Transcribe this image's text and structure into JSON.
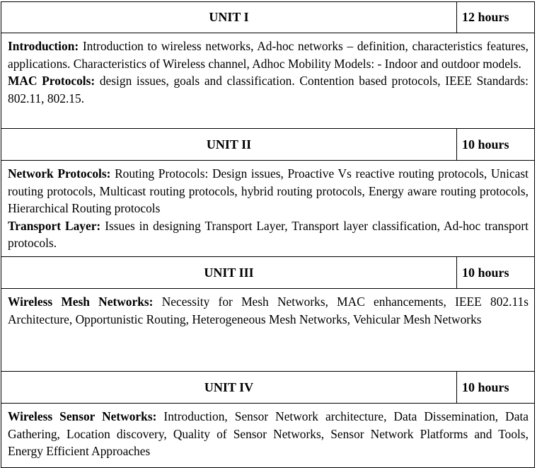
{
  "units": [
    {
      "title": "UNIT I",
      "hours": "12 hours",
      "paragraphs": [
        {
          "label": "Introduction:",
          "text": " Introduction to wireless networks, Ad-hoc networks – definition, characteristics features, applications. Characteristics of Wireless channel, Adhoc Mobility Models: - Indoor and outdoor models."
        },
        {
          "label": "MAC Protocols:",
          "text": " design issues, goals and classification. Contention based protocols, IEEE Standards: 802.11, 802.15."
        }
      ]
    },
    {
      "title": "UNIT II",
      "hours": "10 hours",
      "paragraphs": [
        {
          "label": "Network Protocols:",
          "text": " Routing Protocols: Design issues, Proactive Vs reactive routing protocols, Unicast routing protocols, Multicast routing protocols, hybrid routing protocols, Energy aware routing protocols, Hierarchical Routing protocols"
        },
        {
          "label": "Transport Layer:",
          "text": " Issues in designing Transport Layer, Transport layer classification, Ad-hoc transport protocols."
        }
      ]
    },
    {
      "title": "UNIT III",
      "hours": "10 hours",
      "paragraphs": [
        {
          "label": "Wireless Mesh Networks:",
          "text": " Necessity for Mesh Networks, MAC enhancements, IEEE 802.11s Architecture, Opportunistic Routing, Heterogeneous Mesh Networks, Vehicular Mesh Networks"
        }
      ]
    },
    {
      "title": "UNIT IV",
      "hours": "10 hours",
      "paragraphs": [
        {
          "label": "Wireless Sensor Networks:",
          "text": " Introduction, Sensor Network architecture, Data Dissemination, Data Gathering, Location discovery, Quality of Sensor Networks, Sensor Network Platforms and Tools, Energy Efficient Approaches"
        }
      ]
    }
  ]
}
